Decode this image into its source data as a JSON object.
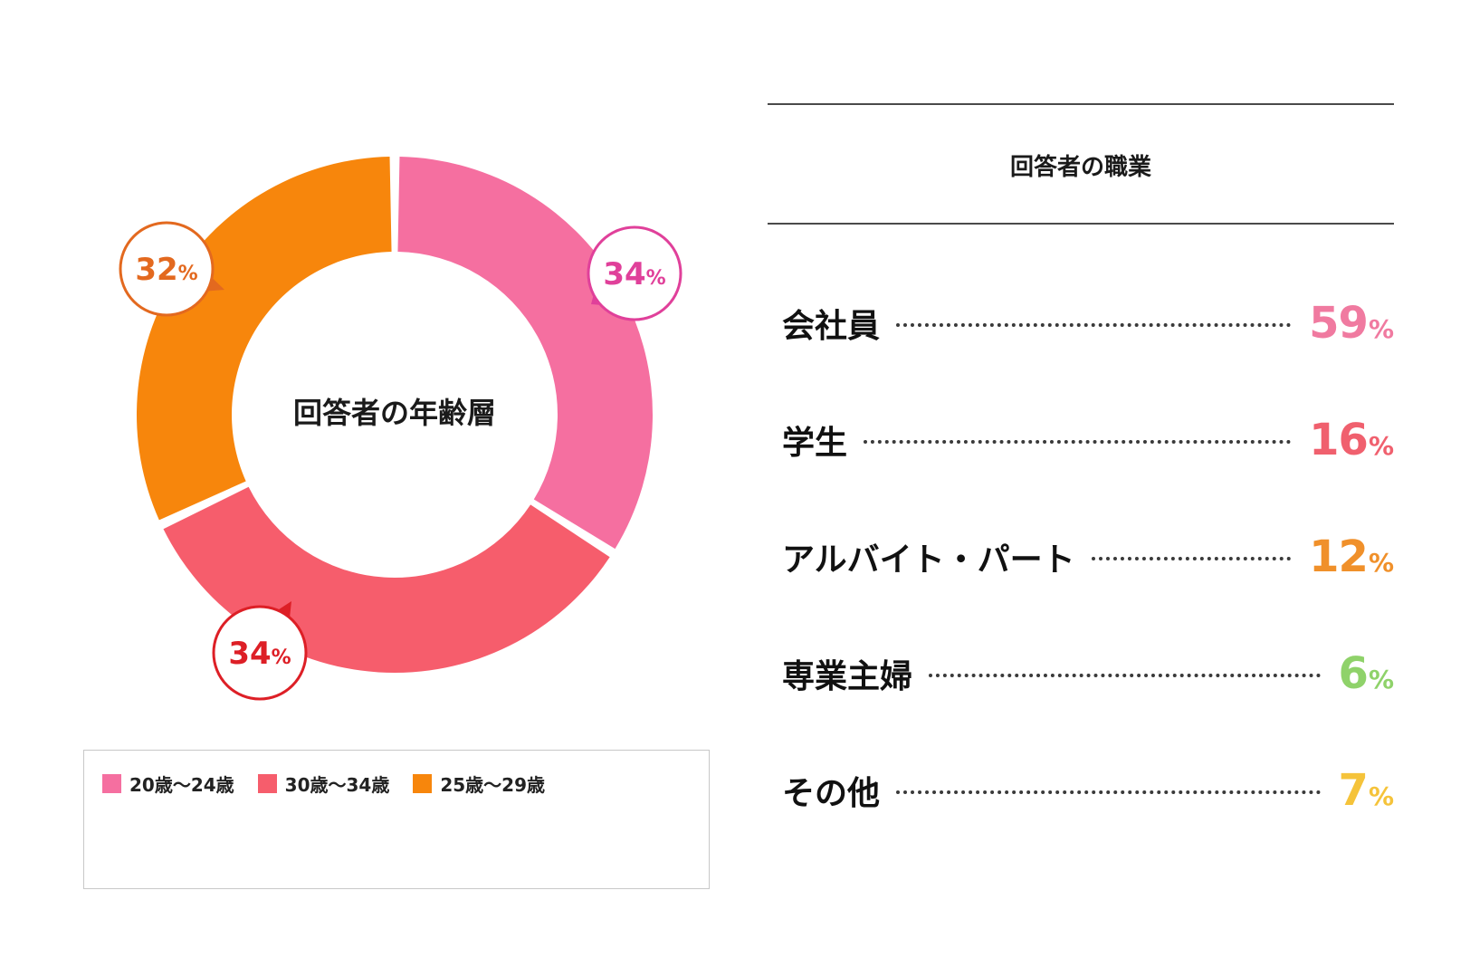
{
  "chart_data": [
    {
      "type": "pie",
      "donut": true,
      "title": "回答者の年齢層",
      "slices": [
        {
          "label": "20歳〜24歳",
          "value": 34,
          "display": "34",
          "unit": "%",
          "color": "#f56fa0",
          "accent": "#e0409a"
        },
        {
          "label": "30歳〜34歳",
          "value": 34,
          "display": "34",
          "unit": "%",
          "color": "#f65d6c",
          "accent": "#dd1f26"
        },
        {
          "label": "25歳〜29歳",
          "value": 32,
          "display": "32",
          "unit": "%",
          "color": "#f7860c",
          "accent": "#e3691f"
        }
      ],
      "legend": {
        "position": "bottom"
      }
    },
    {
      "type": "table",
      "title": "回答者の職業",
      "rows": [
        {
          "label": "会社員",
          "value": 59,
          "display": "59",
          "unit": "%",
          "color": "#f07aa0"
        },
        {
          "label": "学生",
          "value": 16,
          "display": "16",
          "unit": "%",
          "color": "#f0606e"
        },
        {
          "label": "アルバイト・パート",
          "value": 12,
          "display": "12",
          "unit": "%",
          "color": "#f0902a"
        },
        {
          "label": "専業主婦",
          "value": 6,
          "display": "6",
          "unit": "%",
          "color": "#8fd26a"
        },
        {
          "label": "その他",
          "value": 7,
          "display": "7",
          "unit": "%",
          "color": "#f5c33a"
        }
      ]
    }
  ]
}
